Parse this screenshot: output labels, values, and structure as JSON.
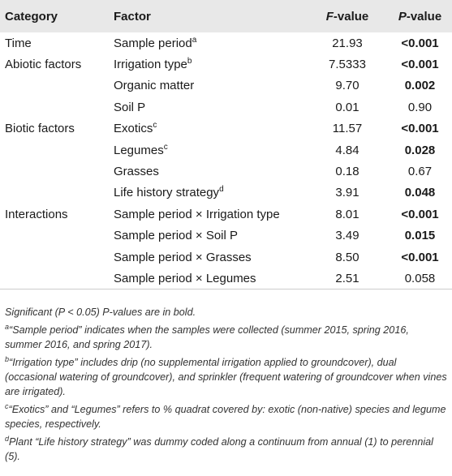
{
  "headers": {
    "category": "Category",
    "factor": "Factor",
    "f_value_italic": "F",
    "f_value_rest": "-value",
    "p_value_italic": "P",
    "p_value_rest": "-value"
  },
  "rows": [
    {
      "category": "Time",
      "factor": "Sample period",
      "sup": "a",
      "f": "21.93",
      "p": "<0.001",
      "p_bold": true
    },
    {
      "category": "Abiotic factors",
      "factor": "Irrigation type",
      "sup": "b",
      "f": "7.5333",
      "p": "<0.001",
      "p_bold": true
    },
    {
      "category": "",
      "factor": "Organic matter",
      "sup": "",
      "f": "9.70",
      "p": "0.002",
      "p_bold": true
    },
    {
      "category": "",
      "factor": "Soil P",
      "sup": "",
      "f": "0.01",
      "p": "0.90",
      "p_bold": false
    },
    {
      "category": "Biotic factors",
      "factor": "Exotics",
      "sup": "c",
      "f": "11.57",
      "p": "<0.001",
      "p_bold": true
    },
    {
      "category": "",
      "factor": "Legumes",
      "sup": "c",
      "f": "4.84",
      "p": "0.028",
      "p_bold": true
    },
    {
      "category": "",
      "factor": "Grasses",
      "sup": "",
      "f": "0.18",
      "p": "0.67",
      "p_bold": false
    },
    {
      "category": "",
      "factor": "Life history strategy",
      "sup": "d",
      "f": "3.91",
      "p": "0.048",
      "p_bold": true
    },
    {
      "category": "Interactions",
      "factor": "Sample period × Irrigation type",
      "sup": "",
      "f": "8.01",
      "p": "<0.001",
      "p_bold": true
    },
    {
      "category": "",
      "factor": "Sample period × Soil P",
      "sup": "",
      "f": "3.49",
      "p": "0.015",
      "p_bold": true
    },
    {
      "category": "",
      "factor": "Sample period × Grasses",
      "sup": "",
      "f": "8.50",
      "p": "<0.001",
      "p_bold": true
    },
    {
      "category": "",
      "factor": "Sample period × Legumes",
      "sup": "",
      "f": "2.51",
      "p": "0.058",
      "p_bold": false
    }
  ],
  "footnotes": {
    "significance": "Significant (P < 0.05) P-values are in bold.",
    "a": {
      "mark": "a",
      "text": "“Sample period” indicates when the samples were collected (summer 2015, spring 2016, summer 2016, and spring 2017)."
    },
    "b": {
      "mark": "b",
      "text": "“Irrigation type” includes drip (no supplemental irrigation applied to groundcover), dual (occasional watering of groundcover), and sprinkler (frequent watering of groundcover when vines are irrigated)."
    },
    "c": {
      "mark": "c",
      "text": "“Exotics” and “Legumes” refers to % quadrat covered by: exotic (non-native) species and legume species, respectively."
    },
    "d": {
      "mark": "d",
      "text": "Plant “Life history strategy” was dummy coded along a continuum from annual (1) to perennial (5)."
    }
  }
}
